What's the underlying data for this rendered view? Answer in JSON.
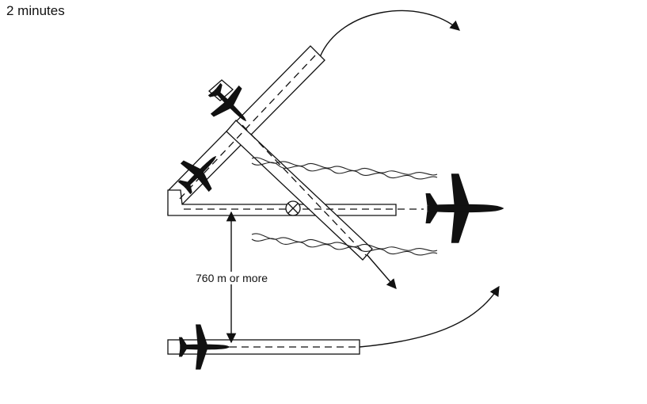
{
  "caption": "2 minutes",
  "separation_label": "760 m or more",
  "colors": {
    "ink": "#111111",
    "background": "#ffffff"
  },
  "icons": [
    "airplane-icon",
    "runway-intersection-icon",
    "arrow-head-icon"
  ]
}
